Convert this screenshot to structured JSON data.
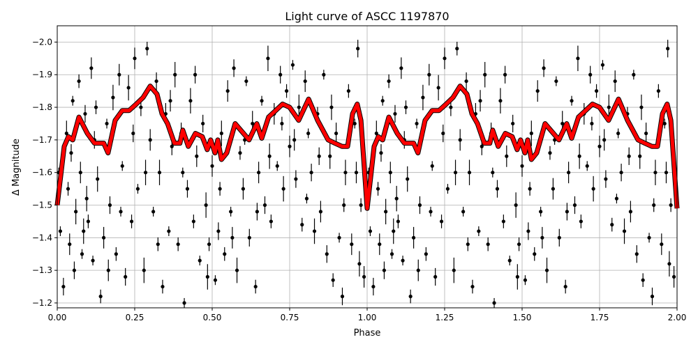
{
  "chart_data": {
    "type": "scatter",
    "title": "Light curve of ASCC 1197870",
    "xlabel": "Phase",
    "ylabel": "Δ Magnitude",
    "xlim": [
      0,
      2
    ],
    "ylim": [
      -1.185,
      -2.05
    ],
    "y_inverted": true,
    "grid": true,
    "xticks": [
      0,
      0.25,
      0.5,
      0.75,
      1.0,
      1.25,
      1.5,
      1.75,
      2.0
    ],
    "xtick_labels": [
      "0.00",
      "0.25",
      "0.50",
      "0.75",
      "1.00",
      "1.25",
      "1.50",
      "1.75",
      "2.00"
    ],
    "yticks": [
      -2.0,
      -1.9,
      -1.8,
      -1.7,
      -1.6,
      -1.5,
      -1.4,
      -1.3,
      -1.2
    ],
    "ytick_labels": [
      "−2.0",
      "−1.9",
      "−1.8",
      "−1.7",
      "−1.6",
      "−1.5",
      "−1.4",
      "−1.3",
      "−1.2"
    ],
    "folded_cycles": 2,
    "colors": {
      "points": "#000000",
      "model": "#ff0000"
    },
    "points": [
      [
        0.01,
        -1.42
      ],
      [
        0.02,
        -1.25
      ],
      [
        0.03,
        -1.72
      ],
      [
        0.035,
        -1.55
      ],
      [
        0.04,
        -1.38
      ],
      [
        0.05,
        -1.82
      ],
      [
        0.055,
        -1.3
      ],
      [
        0.06,
        -1.48
      ],
      [
        0.07,
        -1.88
      ],
      [
        0.075,
        -1.6
      ],
      [
        0.08,
        -1.35
      ],
      [
        0.09,
        -1.78
      ],
      [
        0.095,
        -1.52
      ],
      [
        0.1,
        -1.45
      ],
      [
        0.11,
        -1.92
      ],
      [
        0.115,
        -1.33
      ],
      [
        0.12,
        -1.7
      ],
      [
        0.13,
        -1.58
      ],
      [
        0.14,
        -1.22
      ],
      [
        0.15,
        -1.4
      ],
      [
        0.16,
        -1.75
      ],
      [
        0.17,
        -1.5
      ],
      [
        0.18,
        -1.83
      ],
      [
        0.19,
        -1.35
      ],
      [
        0.2,
        -1.9
      ],
      [
        0.21,
        -1.62
      ],
      [
        0.22,
        -1.28
      ],
      [
        0.23,
        -1.86
      ],
      [
        0.24,
        -1.45
      ],
      [
        0.25,
        -1.95
      ],
      [
        0.26,
        -1.55
      ],
      [
        0.27,
        -1.8
      ],
      [
        0.28,
        -1.3
      ],
      [
        0.29,
        -1.98
      ],
      [
        0.3,
        -1.7
      ],
      [
        0.31,
        -1.48
      ],
      [
        0.32,
        -1.88
      ],
      [
        0.33,
        -1.6
      ],
      [
        0.34,
        -1.25
      ],
      [
        0.35,
        -1.78
      ],
      [
        0.36,
        -1.42
      ],
      [
        0.37,
        -1.68
      ],
      [
        0.38,
        -1.9
      ],
      [
        0.39,
        -1.38
      ],
      [
        0.4,
        -1.72
      ],
      [
        0.41,
        -1.2
      ],
      [
        0.42,
        -1.55
      ],
      [
        0.43,
        -1.82
      ],
      [
        0.44,
        -1.45
      ],
      [
        0.45,
        -1.65
      ],
      [
        0.46,
        -1.33
      ],
      [
        0.47,
        -1.75
      ],
      [
        0.48,
        -1.5
      ],
      [
        0.49,
        -1.38
      ],
      [
        0.5,
        -1.62
      ],
      [
        0.51,
        -1.27
      ],
      [
        0.52,
        -1.42
      ],
      [
        0.53,
        -1.72
      ],
      [
        0.54,
        -1.35
      ],
      [
        0.55,
        -1.85
      ],
      [
        0.56,
        -1.48
      ],
      [
        0.57,
        -1.92
      ],
      [
        0.58,
        -1.3
      ],
      [
        0.59,
        -1.66
      ],
      [
        0.6,
        -1.55
      ],
      [
        0.61,
        -1.88
      ],
      [
        0.62,
        -1.4
      ],
      [
        0.63,
        -1.75
      ],
      [
        0.64,
        -1.25
      ],
      [
        0.65,
        -1.6
      ],
      [
        0.66,
        -1.82
      ],
      [
        0.67,
        -1.5
      ],
      [
        0.68,
        -1.95
      ],
      [
        0.69,
        -1.45
      ],
      [
        0.7,
        -1.78
      ],
      [
        0.71,
        -1.62
      ],
      [
        0.72,
        -1.9
      ],
      [
        0.73,
        -1.55
      ],
      [
        0.74,
        -1.85
      ],
      [
        0.75,
        -1.68
      ],
      [
        0.76,
        -1.93
      ],
      [
        0.77,
        -1.58
      ],
      [
        0.78,
        -1.8
      ],
      [
        0.79,
        -1.44
      ],
      [
        0.8,
        -1.88
      ],
      [
        0.81,
        -1.72
      ],
      [
        0.82,
        -1.6
      ],
      [
        0.83,
        -1.42
      ],
      [
        0.84,
        -1.78
      ],
      [
        0.85,
        -1.48
      ],
      [
        0.86,
        -1.9
      ],
      [
        0.87,
        -1.35
      ],
      [
        0.88,
        -1.65
      ],
      [
        0.89,
        -1.27
      ],
      [
        0.9,
        -1.72
      ],
      [
        0.91,
        -1.4
      ],
      [
        0.92,
        -1.22
      ],
      [
        0.93,
        -1.6
      ],
      [
        0.94,
        -1.85
      ],
      [
        0.95,
        -1.38
      ],
      [
        0.96,
        -1.75
      ],
      [
        0.97,
        -1.98
      ],
      [
        0.975,
        -1.32
      ],
      [
        0.98,
        -1.5
      ],
      [
        0.99,
        -1.28
      ],
      [
        0.005,
        -1.6
      ],
      [
        0.045,
        -1.66
      ],
      [
        0.085,
        -1.42
      ],
      [
        0.125,
        -1.8
      ],
      [
        0.165,
        -1.3
      ],
      [
        0.205,
        -1.48
      ],
      [
        0.245,
        -1.72
      ],
      [
        0.285,
        -1.6
      ],
      [
        0.325,
        -1.38
      ],
      [
        0.365,
        -1.82
      ],
      [
        0.405,
        -1.6
      ],
      [
        0.445,
        -1.9
      ],
      [
        0.485,
        -1.28
      ],
      [
        0.525,
        -1.55
      ],
      [
        0.565,
        -1.4
      ],
      [
        0.605,
        -1.7
      ],
      [
        0.645,
        -1.48
      ],
      [
        0.685,
        -1.65
      ],
      [
        0.725,
        -1.75
      ],
      [
        0.765,
        -1.7
      ],
      [
        0.805,
        -1.52
      ],
      [
        0.845,
        -1.65
      ],
      [
        0.885,
        -1.8
      ],
      [
        0.925,
        -1.5
      ],
      [
        0.965,
        -1.6
      ]
    ],
    "model_curve": [
      [
        0,
        -1.5
      ],
      [
        0.0225,
        -1.68
      ],
      [
        0.036,
        -1.71
      ],
      [
        0.05,
        -1.7
      ],
      [
        0.07,
        -1.77
      ],
      [
        0.097,
        -1.72
      ],
      [
        0.12,
        -1.69
      ],
      [
        0.15,
        -1.69
      ],
      [
        0.164,
        -1.66
      ],
      [
        0.187,
        -1.76
      ],
      [
        0.21,
        -1.79
      ],
      [
        0.232,
        -1.79
      ],
      [
        0.255,
        -1.81
      ],
      [
        0.277,
        -1.83
      ],
      [
        0.3,
        -1.865
      ],
      [
        0.322,
        -1.84
      ],
      [
        0.338,
        -1.78
      ],
      [
        0.356,
        -1.75
      ],
      [
        0.378,
        -1.69
      ],
      [
        0.396,
        -1.69
      ],
      [
        0.405,
        -1.73
      ],
      [
        0.423,
        -1.68
      ],
      [
        0.446,
        -1.72
      ],
      [
        0.468,
        -1.71
      ],
      [
        0.484,
        -1.67
      ],
      [
        0.495,
        -1.7
      ],
      [
        0.509,
        -1.66
      ],
      [
        0.518,
        -1.7
      ],
      [
        0.53,
        -1.64
      ],
      [
        0.547,
        -1.66
      ],
      [
        0.574,
        -1.75
      ],
      [
        0.592,
        -1.73
      ],
      [
        0.619,
        -1.7
      ],
      [
        0.644,
        -1.75
      ],
      [
        0.66,
        -1.705
      ],
      [
        0.682,
        -1.77
      ],
      [
        0.705,
        -1.79
      ],
      [
        0.727,
        -1.81
      ],
      [
        0.75,
        -1.8
      ],
      [
        0.779,
        -1.76
      ],
      [
        0.811,
        -1.825
      ],
      [
        0.84,
        -1.76
      ],
      [
        0.874,
        -1.7
      ],
      [
        0.896,
        -1.69
      ],
      [
        0.919,
        -1.68
      ],
      [
        0.937,
        -1.68
      ],
      [
        0.953,
        -1.78
      ],
      [
        0.968,
        -1.81
      ],
      [
        0.98,
        -1.76
      ],
      [
        1.0,
        -1.49
      ]
    ]
  }
}
